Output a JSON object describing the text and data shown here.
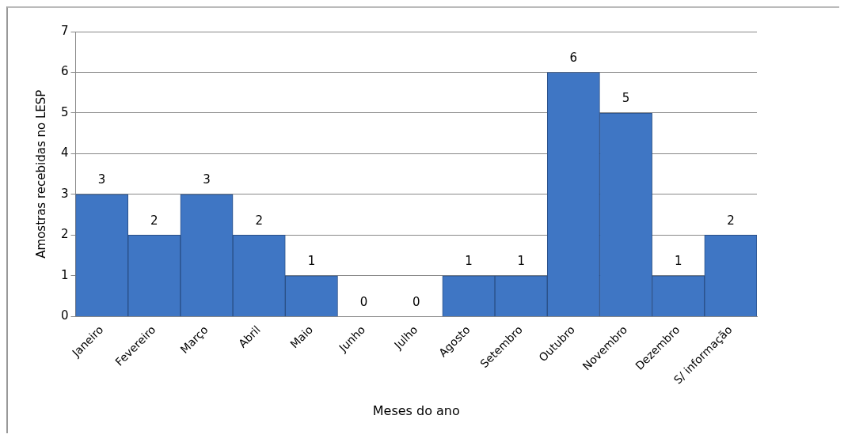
{
  "chart_data": {
    "type": "bar",
    "xlabel": "Meses do ano",
    "ylabel": "Amostras recebidas no LESP",
    "categories": [
      "Janeiro",
      "Fevereiro",
      "Março",
      "Abril",
      "Maio",
      "Junho",
      "Julho",
      "Agosto",
      "Setembro",
      "Outubro",
      "Novembro",
      "Dezembro",
      "S/ informação"
    ],
    "values": [
      3,
      2,
      3,
      2,
      1,
      0,
      0,
      1,
      1,
      6,
      5,
      1,
      2
    ],
    "color": "#3f76c4",
    "ylim": [
      0,
      7
    ],
    "yticks": [
      0,
      1,
      2,
      3,
      4,
      5,
      6,
      7
    ],
    "grid": "y",
    "data_labels": true
  }
}
